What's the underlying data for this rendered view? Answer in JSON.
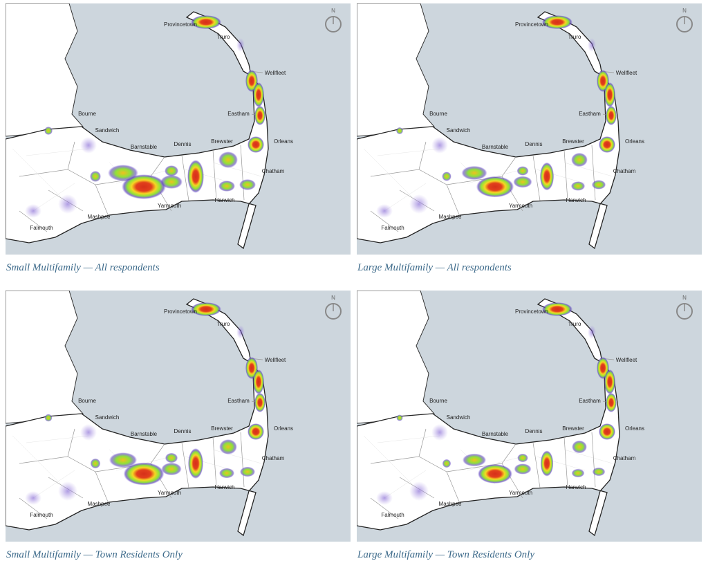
{
  "compass": "N",
  "towns": [
    "Provincetown",
    "Truro",
    "Wellfleet",
    "Eastham",
    "Orleans",
    "Brewster",
    "Dennis",
    "Barnstable",
    "Sandwich",
    "Bourne",
    "Chatham",
    "Harwich",
    "Yarmouth",
    "Mashpee",
    "Falmouth"
  ],
  "maps": [
    {
      "caption": "Small Multifamily — All respondents"
    },
    {
      "caption": "Large Multifamily — All respondents"
    },
    {
      "caption": "Small Multifamily — Town Residents Only"
    },
    {
      "caption": "Large Multifamily — Town Residents Only"
    }
  ]
}
